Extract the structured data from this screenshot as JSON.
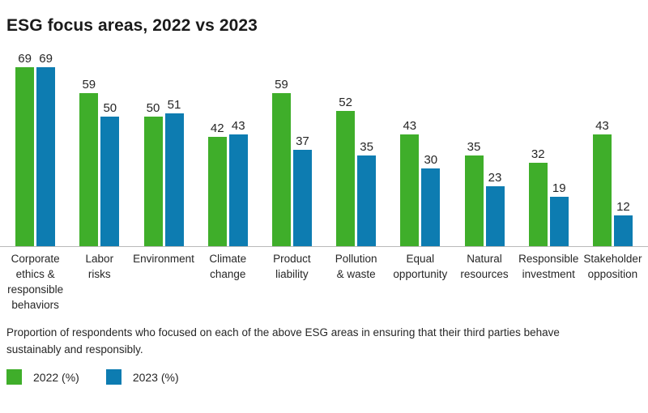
{
  "page": {
    "background": "#ffffff"
  },
  "chart_data": {
    "type": "bar",
    "title": "ESG focus areas, 2022 vs 2023",
    "categories": [
      "Corporate ethics & responsible behaviors",
      "Labor risks",
      "Environment",
      "Climate change",
      "Product liability",
      "Pollution & waste",
      "Equal opportunity",
      "Natural resources",
      "Responsible investment",
      "Stakeholder opposition"
    ],
    "categories_display": [
      "Corporate\nethics &\nresponsible\nbehaviors",
      "Labor\nrisks",
      "Environment",
      "Climate\nchange",
      "Product\nliability",
      "Pollution\n& waste",
      "Equal\nopportunity",
      "Natural\nresources",
      "Responsible\ninvestment",
      "Stakeholder\nopposition"
    ],
    "series": [
      {
        "name": "2022 (%)",
        "color": "#3fae2a",
        "values": [
          69,
          59,
          50,
          42,
          59,
          52,
          43,
          35,
          32,
          43
        ]
      },
      {
        "name": "2023 (%)",
        "color": "#0d7cb1",
        "values": [
          69,
          50,
          51,
          43,
          37,
          35,
          30,
          23,
          19,
          12
        ]
      }
    ],
    "ylim": [
      0,
      70
    ],
    "grid": false,
    "value_labels": true,
    "legend_position": "bottom-left",
    "axis_line_color": "#b9b9b9"
  },
  "caption": "Proportion of respondents who focused on each of the above ESG areas in ensuring that their third parties behave sustainably and responsibly.",
  "legend": [
    {
      "label": "2022 (%)",
      "color": "#3fae2a"
    },
    {
      "label": "2023 (%)",
      "color": "#0d7cb1"
    }
  ]
}
